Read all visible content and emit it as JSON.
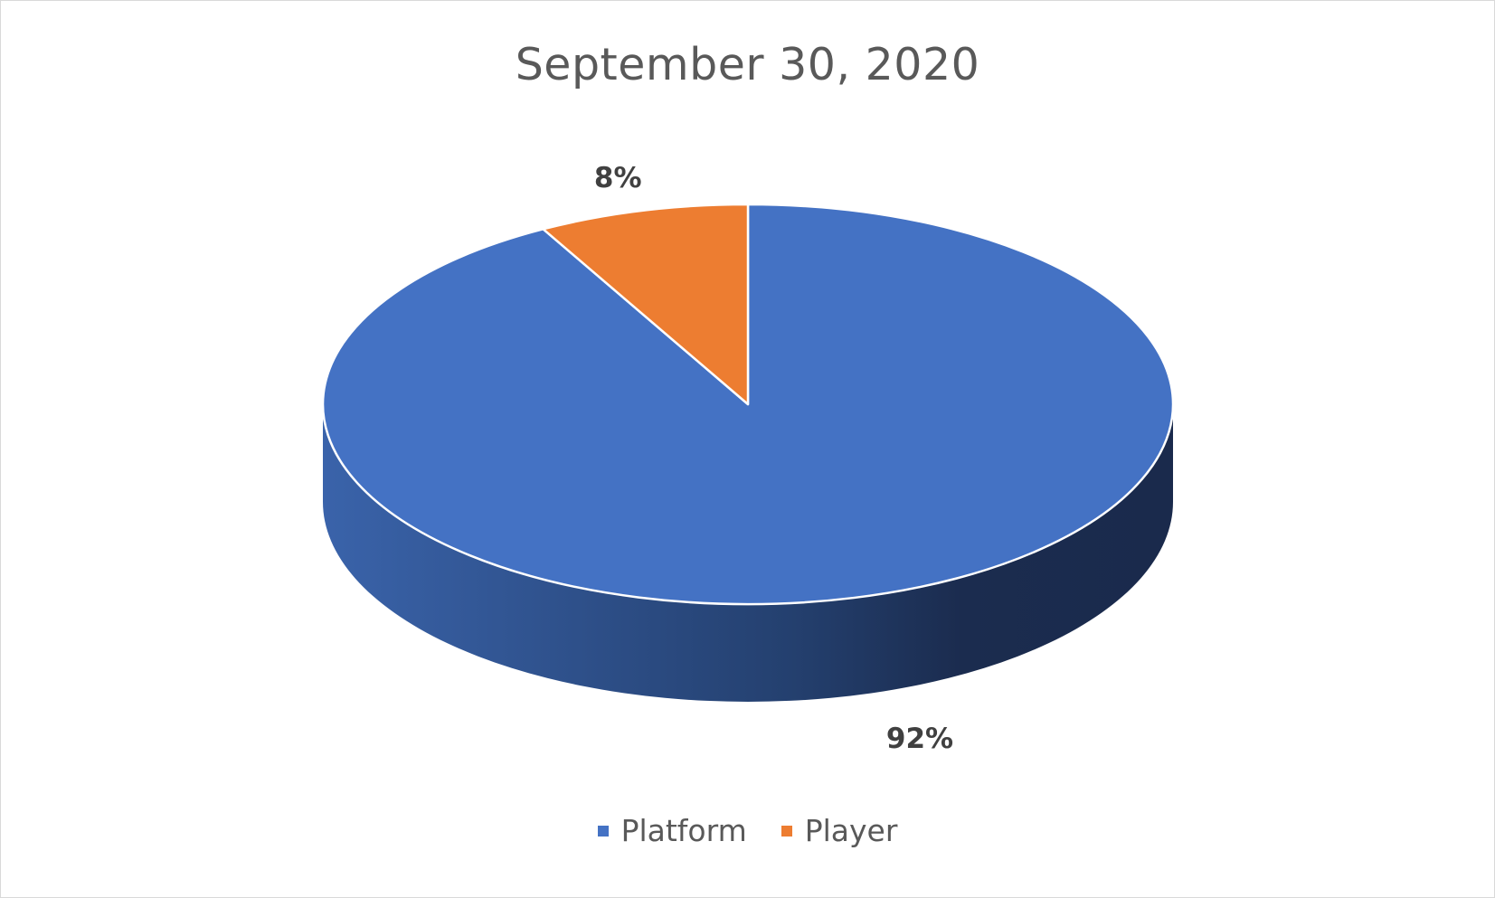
{
  "chart_data": {
    "type": "pie",
    "title": "September 30, 2020",
    "categories": [
      "Platform",
      "Player"
    ],
    "values": [
      92,
      8
    ],
    "labels": [
      "92%",
      "8%"
    ],
    "colors": [
      "#4472c4",
      "#ed7d31"
    ],
    "style": "3d",
    "legend_position": "bottom"
  }
}
